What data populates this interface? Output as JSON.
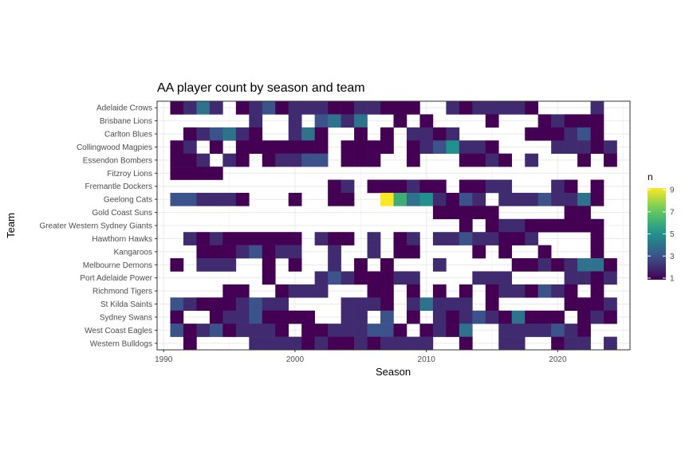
{
  "chart_data": {
    "type": "heatmap",
    "title": "AA player count by season and team",
    "xlabel": "Season",
    "ylabel": "Team",
    "xlim": [
      1989.5,
      2025.5
    ],
    "x_ticks": [
      1990,
      2000,
      2010,
      2020
    ],
    "grid": true,
    "legend": {
      "title": "n",
      "position": "right",
      "min": 1,
      "max": 9,
      "ticks": [
        1,
        3,
        5,
        7,
        9
      ]
    },
    "colorscale": "viridis",
    "teams": [
      "Adelaide Crows",
      "Brisbane Lions",
      "Carlton Blues",
      "Collingwood Magpies",
      "Essendon Bombers",
      "Fitzroy Lions",
      "Fremantle Dockers",
      "Geelong Cats",
      "Gold Coast Suns",
      "Greater Western Sydney Giants",
      "Hawthorn Hawks",
      "Kangaroos",
      "Melbourne Demons",
      "Port Adelaide Power",
      "Richmond Tigers",
      "St Kilda Saints",
      "Sydney Swans",
      "West Coast Eagles",
      "Western Bulldogs"
    ],
    "seasons_start": 1991,
    "values": {
      "Adelaide Crows": [
        1,
        2,
        4,
        2,
        0,
        1,
        2,
        3,
        1,
        2,
        2,
        2,
        1,
        1,
        2,
        2,
        1,
        1,
        1,
        0,
        0,
        2,
        1,
        2,
        2,
        2,
        2,
        1,
        0,
        0,
        0,
        0,
        2
      ],
      "Brisbane Lions": [
        0,
        0,
        0,
        0,
        0,
        0,
        2,
        0,
        0,
        2,
        0,
        3,
        4,
        2,
        4,
        0,
        0,
        1,
        0,
        1,
        0,
        0,
        0,
        0,
        1,
        0,
        0,
        0,
        1,
        2,
        1,
        1,
        1
      ],
      "Carlton Blues": [
        0,
        1,
        2,
        3,
        4,
        2,
        1,
        0,
        0,
        2,
        4,
        1,
        0,
        0,
        1,
        0,
        1,
        0,
        2,
        2,
        1,
        2,
        0,
        0,
        0,
        0,
        0,
        1,
        1,
        1,
        2,
        3,
        1
      ],
      "Collingwood Magpies": [
        1,
        2,
        0,
        1,
        0,
        1,
        1,
        1,
        1,
        1,
        1,
        1,
        0,
        1,
        1,
        1,
        1,
        0,
        1,
        2,
        3,
        5,
        2,
        2,
        1,
        0,
        0,
        0,
        0,
        2,
        2,
        2,
        1,
        2
      ],
      "Essendon Bombers": [
        1,
        1,
        2,
        0,
        2,
        1,
        0,
        1,
        2,
        2,
        3,
        3,
        0,
        1,
        1,
        1,
        0,
        0,
        1,
        0,
        0,
        0,
        1,
        1,
        2,
        1,
        0,
        2,
        0,
        0,
        0,
        1,
        0,
        1
      ],
      "Fitzroy Lions": [
        1,
        1,
        1,
        1
      ],
      "Fremantle Dockers": [
        0,
        0,
        0,
        0,
        0,
        0,
        0,
        0,
        0,
        0,
        0,
        0,
        1,
        2,
        0,
        1,
        1,
        1,
        2,
        1,
        1,
        0,
        1,
        1,
        2,
        2,
        0,
        0,
        0,
        2,
        1,
        0,
        1
      ],
      "Geelong Cats": [
        3,
        3,
        2,
        2,
        2,
        1,
        0,
        0,
        0,
        1,
        0,
        0,
        1,
        1,
        0,
        0,
        9,
        6,
        4,
        5,
        2,
        1,
        3,
        2,
        0,
        2,
        2,
        2,
        3,
        2,
        2,
        4,
        1
      ],
      "Gold Coast Suns": [
        0,
        0,
        0,
        0,
        0,
        0,
        0,
        0,
        0,
        0,
        0,
        0,
        0,
        0,
        0,
        0,
        0,
        0,
        0,
        0,
        1,
        1,
        1,
        1,
        1,
        0,
        0,
        0,
        0,
        0,
        1,
        1,
        0
      ],
      "Greater Western Sydney Giants": [
        0,
        0,
        0,
        0,
        0,
        0,
        0,
        0,
        0,
        0,
        0,
        0,
        0,
        0,
        0,
        0,
        0,
        0,
        0,
        0,
        0,
        0,
        1,
        0,
        1,
        2,
        2,
        1,
        1,
        1,
        1,
        1,
        1
      ],
      "Hawthorn Hawks": [
        0,
        2,
        1,
        2,
        1,
        1,
        1,
        1,
        1,
        1,
        0,
        2,
        1,
        1,
        0,
        2,
        0,
        1,
        2,
        0,
        2,
        2,
        3,
        2,
        2,
        1,
        1,
        2,
        0,
        0,
        0,
        0,
        1
      ],
      "Kangaroos": [
        0,
        0,
        1,
        1,
        1,
        2,
        3,
        1,
        2,
        2,
        0,
        0,
        2,
        0,
        0,
        2,
        0,
        1,
        1,
        0,
        0,
        0,
        0,
        1,
        0,
        1,
        0,
        0,
        1,
        0,
        0,
        0,
        1
      ],
      "Melbourne Demons": [
        1,
        0,
        2,
        2,
        2,
        0,
        0,
        1,
        0,
        1,
        0,
        0,
        2,
        0,
        1,
        0,
        1,
        0,
        0,
        0,
        2,
        0,
        0,
        0,
        0,
        0,
        1,
        1,
        2,
        1,
        2,
        4,
        4,
        1
      ],
      "Port Adelaide Power": [
        0,
        0,
        0,
        0,
        0,
        0,
        0,
        1,
        0,
        0,
        0,
        2,
        3,
        2,
        1,
        1,
        1,
        2,
        2,
        0,
        0,
        0,
        0,
        2,
        2,
        2,
        0,
        0,
        0,
        0,
        2,
        2,
        1,
        2
      ],
      "Richmond Tigers": [
        0,
        0,
        0,
        0,
        1,
        1,
        0,
        0,
        1,
        2,
        2,
        2,
        0,
        0,
        0,
        1,
        1,
        0,
        1,
        0,
        1,
        0,
        1,
        0,
        1,
        2,
        2,
        1,
        3,
        2,
        1,
        0,
        1,
        0
      ],
      "St Kilda Saints": [
        3,
        2,
        1,
        1,
        1,
        2,
        3,
        2,
        2,
        0,
        0,
        0,
        0,
        2,
        2,
        2,
        1,
        0,
        2,
        4,
        2,
        2,
        2,
        0,
        1,
        0,
        0,
        0,
        0,
        0,
        1,
        1,
        1,
        2
      ],
      "Sydney Swans": [
        1,
        0,
        0,
        1,
        2,
        2,
        3,
        1,
        1,
        1,
        1,
        0,
        0,
        2,
        2,
        0,
        3,
        0,
        1,
        0,
        2,
        1,
        2,
        3,
        2,
        1,
        4,
        1,
        1,
        1,
        0,
        1,
        2,
        1
      ],
      "West Coast Eagles": [
        3,
        1,
        2,
        3,
        1,
        2,
        2,
        2,
        1,
        0,
        1,
        1,
        2,
        2,
        2,
        3,
        3,
        1,
        0,
        1,
        2,
        1,
        4,
        0,
        0,
        2,
        2,
        2,
        2,
        3,
        2,
        1,
        0,
        0
      ],
      "Western Bulldogs": [
        0,
        1,
        0,
        0,
        0,
        0,
        2,
        2,
        2,
        2,
        1,
        2,
        1,
        1,
        2,
        1,
        2,
        2,
        2,
        2,
        0,
        0,
        1,
        0,
        0,
        2,
        2,
        0,
        0,
        1,
        2,
        2,
        0,
        2
      ]
    }
  }
}
